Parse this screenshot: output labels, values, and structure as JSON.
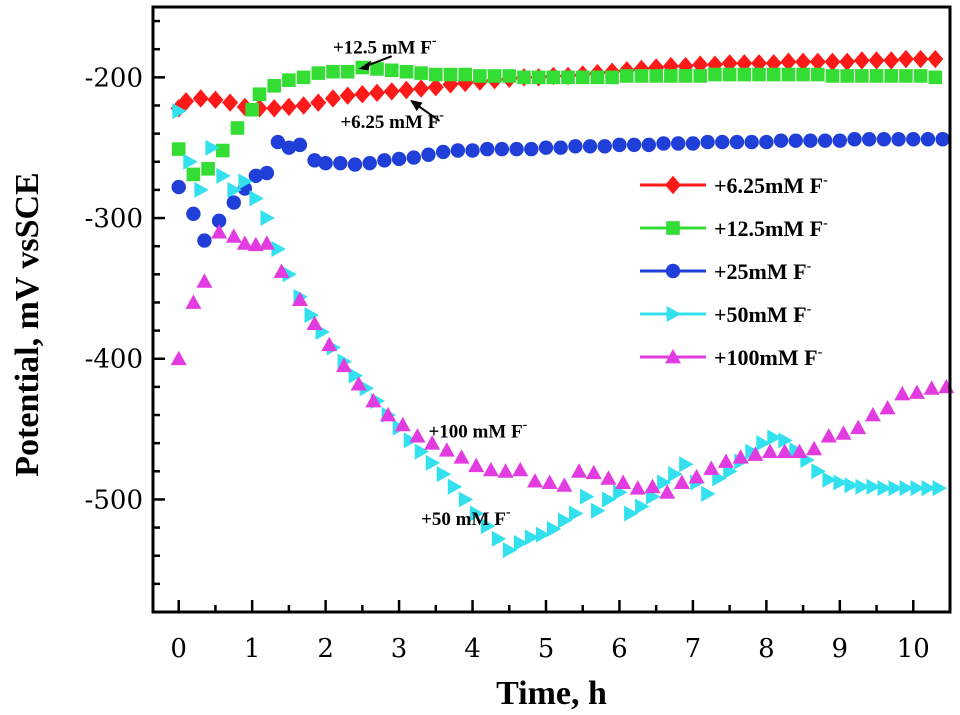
{
  "chart_data": {
    "type": "scatter",
    "title": "",
    "xlabel": "Time, h",
    "ylabel": "Potential, mV vsSCE",
    "xlim": [
      -0.35,
      10.5
    ],
    "ylim": [
      -580,
      -150
    ],
    "xticks": [
      0,
      1,
      2,
      3,
      4,
      5,
      6,
      7,
      8,
      9,
      10
    ],
    "yticks": [
      -200,
      -300,
      -400,
      -500
    ],
    "legend_position": "right",
    "series": [
      {
        "name": "+6.25mM F",
        "superscript": "-",
        "color": "#ff1a1a",
        "marker": "diamond",
        "x": [
          0,
          0.1,
          0.3,
          0.5,
          0.7,
          0.9,
          1.1,
          1.3,
          1.5,
          1.7,
          1.9,
          2.1,
          2.3,
          2.5,
          2.7,
          2.9,
          3.1,
          3.3,
          3.5,
          3.7,
          3.9,
          4.1,
          4.3,
          4.5,
          4.7,
          4.9,
          5.1,
          5.3,
          5.5,
          5.7,
          5.9,
          6.1,
          6.3,
          6.5,
          6.7,
          6.9,
          7.1,
          7.3,
          7.5,
          7.7,
          7.9,
          8.1,
          8.3,
          8.5,
          8.7,
          8.9,
          9.1,
          9.3,
          9.5,
          9.7,
          9.9,
          10.1,
          10.3
        ],
        "y": [
          -222,
          -217,
          -215,
          -216,
          -218,
          -221,
          -222,
          -222,
          -221,
          -220,
          -218,
          -215,
          -213,
          -212,
          -211,
          -210,
          -209,
          -208,
          -207,
          -205,
          -204,
          -203,
          -202,
          -201,
          -200,
          -200,
          -199,
          -199,
          -198,
          -197,
          -196,
          -195,
          -194,
          -193,
          -192,
          -192,
          -191,
          -191,
          -190,
          -190,
          -190,
          -190,
          -189,
          -189,
          -189,
          -189,
          -189,
          -188,
          -188,
          -188,
          -187,
          -187,
          -187
        ]
      },
      {
        "name": "+12.5mM F",
        "superscript": "-",
        "color": "#33dd33",
        "marker": "square",
        "x": [
          0,
          0.2,
          0.4,
          0.6,
          0.8,
          1.0,
          1.1,
          1.3,
          1.5,
          1.7,
          1.9,
          2.1,
          2.3,
          2.5,
          2.7,
          2.9,
          3.1,
          3.3,
          3.5,
          3.7,
          3.9,
          4.1,
          4.3,
          4.5,
          4.7,
          4.9,
          5.1,
          5.3,
          5.5,
          5.7,
          5.9,
          6.1,
          6.3,
          6.5,
          6.7,
          6.9,
          7.1,
          7.3,
          7.5,
          7.7,
          7.9,
          8.1,
          8.3,
          8.5,
          8.7,
          8.9,
          9.1,
          9.3,
          9.5,
          9.7,
          9.9,
          10.1,
          10.3
        ],
        "y": [
          -251,
          -269,
          -265,
          -252,
          -236,
          -223,
          -212,
          -206,
          -202,
          -200,
          -197,
          -196,
          -196,
          -193,
          -194,
          -195,
          -196,
          -197,
          -198,
          -198,
          -198,
          -199,
          -199,
          -199,
          -200,
          -200,
          -200,
          -200,
          -200,
          -200,
          -200,
          -199,
          -199,
          -199,
          -199,
          -199,
          -199,
          -198,
          -198,
          -198,
          -198,
          -198,
          -198,
          -198,
          -198,
          -199,
          -199,
          -199,
          -199,
          -199,
          -199,
          -199,
          -200
        ]
      },
      {
        "name": "+25mM F",
        "superscript": "-",
        "color": "#1f3fd8",
        "marker": "circle",
        "x": [
          0,
          0.2,
          0.35,
          0.55,
          0.75,
          0.9,
          1.05,
          1.2,
          1.35,
          1.5,
          1.65,
          1.85,
          2.0,
          2.2,
          2.4,
          2.6,
          2.8,
          3.0,
          3.2,
          3.4,
          3.6,
          3.8,
          4.0,
          4.2,
          4.4,
          4.6,
          4.8,
          5.0,
          5.2,
          5.4,
          5.6,
          5.8,
          6.0,
          6.2,
          6.4,
          6.6,
          6.8,
          7.0,
          7.2,
          7.4,
          7.6,
          7.8,
          8.0,
          8.2,
          8.4,
          8.6,
          8.8,
          9.0,
          9.2,
          9.4,
          9.6,
          9.8,
          10.0,
          10.2,
          10.4
        ],
        "y": [
          -278,
          -297,
          -316,
          -302,
          -289,
          -279,
          -270,
          -268,
          -246,
          -250,
          -248,
          -259,
          -261,
          -261,
          -262,
          -261,
          -259,
          -258,
          -257,
          -255,
          -253,
          -252,
          -252,
          -251,
          -251,
          -251,
          -251,
          -250,
          -250,
          -249,
          -249,
          -249,
          -248,
          -248,
          -248,
          -247,
          -247,
          -247,
          -246,
          -246,
          -246,
          -246,
          -246,
          -245,
          -245,
          -245,
          -245,
          -245,
          -244,
          -244,
          -244,
          -244,
          -244,
          -244,
          -244
        ]
      },
      {
        "name": "+50mM F",
        "superscript": "-",
        "color": "#33e0ee",
        "marker": "triangle-right",
        "x": [
          0,
          0.15,
          0.3,
          0.45,
          0.6,
          0.75,
          0.9,
          1.05,
          1.2,
          1.35,
          1.5,
          1.65,
          1.8,
          1.95,
          2.1,
          2.25,
          2.4,
          2.55,
          2.7,
          2.85,
          3.0,
          3.15,
          3.3,
          3.45,
          3.6,
          3.75,
          3.9,
          4.05,
          4.2,
          4.35,
          4.5,
          4.65,
          4.8,
          4.95,
          5.1,
          5.25,
          5.4,
          5.55,
          5.7,
          5.85,
          6.0,
          6.15,
          6.3,
          6.45,
          6.6,
          6.75,
          6.9,
          7.05,
          7.2,
          7.35,
          7.5,
          7.65,
          7.8,
          7.95,
          8.1,
          8.25,
          8.4,
          8.55,
          8.7,
          8.85,
          9.0,
          9.15,
          9.3,
          9.45,
          9.6,
          9.75,
          9.9,
          10.05,
          10.2,
          10.35
        ],
        "y": [
          -224,
          -260,
          -280,
          -250,
          -270,
          -280,
          -274,
          -286,
          -300,
          -322,
          -340,
          -356,
          -369,
          -381,
          -392,
          -402,
          -412,
          -421,
          -430,
          -440,
          -449,
          -458,
          -466,
          -474,
          -482,
          -491,
          -500,
          -510,
          -519,
          -528,
          -536,
          -531,
          -527,
          -525,
          -521,
          -515,
          -510,
          -498,
          -508,
          -500,
          -495,
          -510,
          -505,
          -498,
          -488,
          -482,
          -475,
          -488,
          -496,
          -485,
          -480,
          -473,
          -466,
          -460,
          -456,
          -458,
          -465,
          -472,
          -480,
          -486,
          -488,
          -490,
          -491,
          -491,
          -492,
          -492,
          -492,
          -492,
          -492,
          -492
        ]
      },
      {
        "name": "+100mM F",
        "superscript": "-",
        "color": "#e23ce0",
        "marker": "triangle-up",
        "x": [
          0,
          0.2,
          0.35,
          0.55,
          0.75,
          0.9,
          1.05,
          1.2,
          1.4,
          1.65,
          1.85,
          2.05,
          2.25,
          2.45,
          2.65,
          2.85,
          3.05,
          3.25,
          3.45,
          3.65,
          3.85,
          4.05,
          4.25,
          4.45,
          4.65,
          4.85,
          5.05,
          5.25,
          5.45,
          5.65,
          5.85,
          6.05,
          6.25,
          6.45,
          6.65,
          6.85,
          7.05,
          7.25,
          7.45,
          7.65,
          7.85,
          8.05,
          8.25,
          8.45,
          8.65,
          8.85,
          9.05,
          9.25,
          9.45,
          9.65,
          9.85,
          10.05,
          10.25,
          10.45
        ],
        "y": [
          -400,
          -360,
          -345,
          -310,
          -313,
          -318,
          -319,
          -318,
          -338,
          -358,
          -375,
          -390,
          -405,
          -418,
          -430,
          -440,
          -447,
          -455,
          -460,
          -465,
          -470,
          -476,
          -479,
          -480,
          -479,
          -487,
          -488,
          -490,
          -480,
          -481,
          -485,
          -488,
          -492,
          -491,
          -495,
          -488,
          -484,
          -478,
          -473,
          -470,
          -468,
          -466,
          -466,
          -466,
          -464,
          -455,
          -453,
          -449,
          -440,
          -435,
          -425,
          -424,
          -421,
          -420
        ]
      }
    ],
    "annotations": [
      {
        "text": "+12.5 mM F",
        "superscript": "-",
        "x": 2.1,
        "y": -183
      },
      {
        "text": "+6.25 mM F",
        "superscript": "-",
        "x": 2.2,
        "y": -236
      },
      {
        "text": "+100 mM F",
        "superscript": "-",
        "x": 3.4,
        "y": -456
      },
      {
        "text": "+50 mM F",
        "superscript": "-",
        "x": 3.3,
        "y": -518
      }
    ]
  }
}
